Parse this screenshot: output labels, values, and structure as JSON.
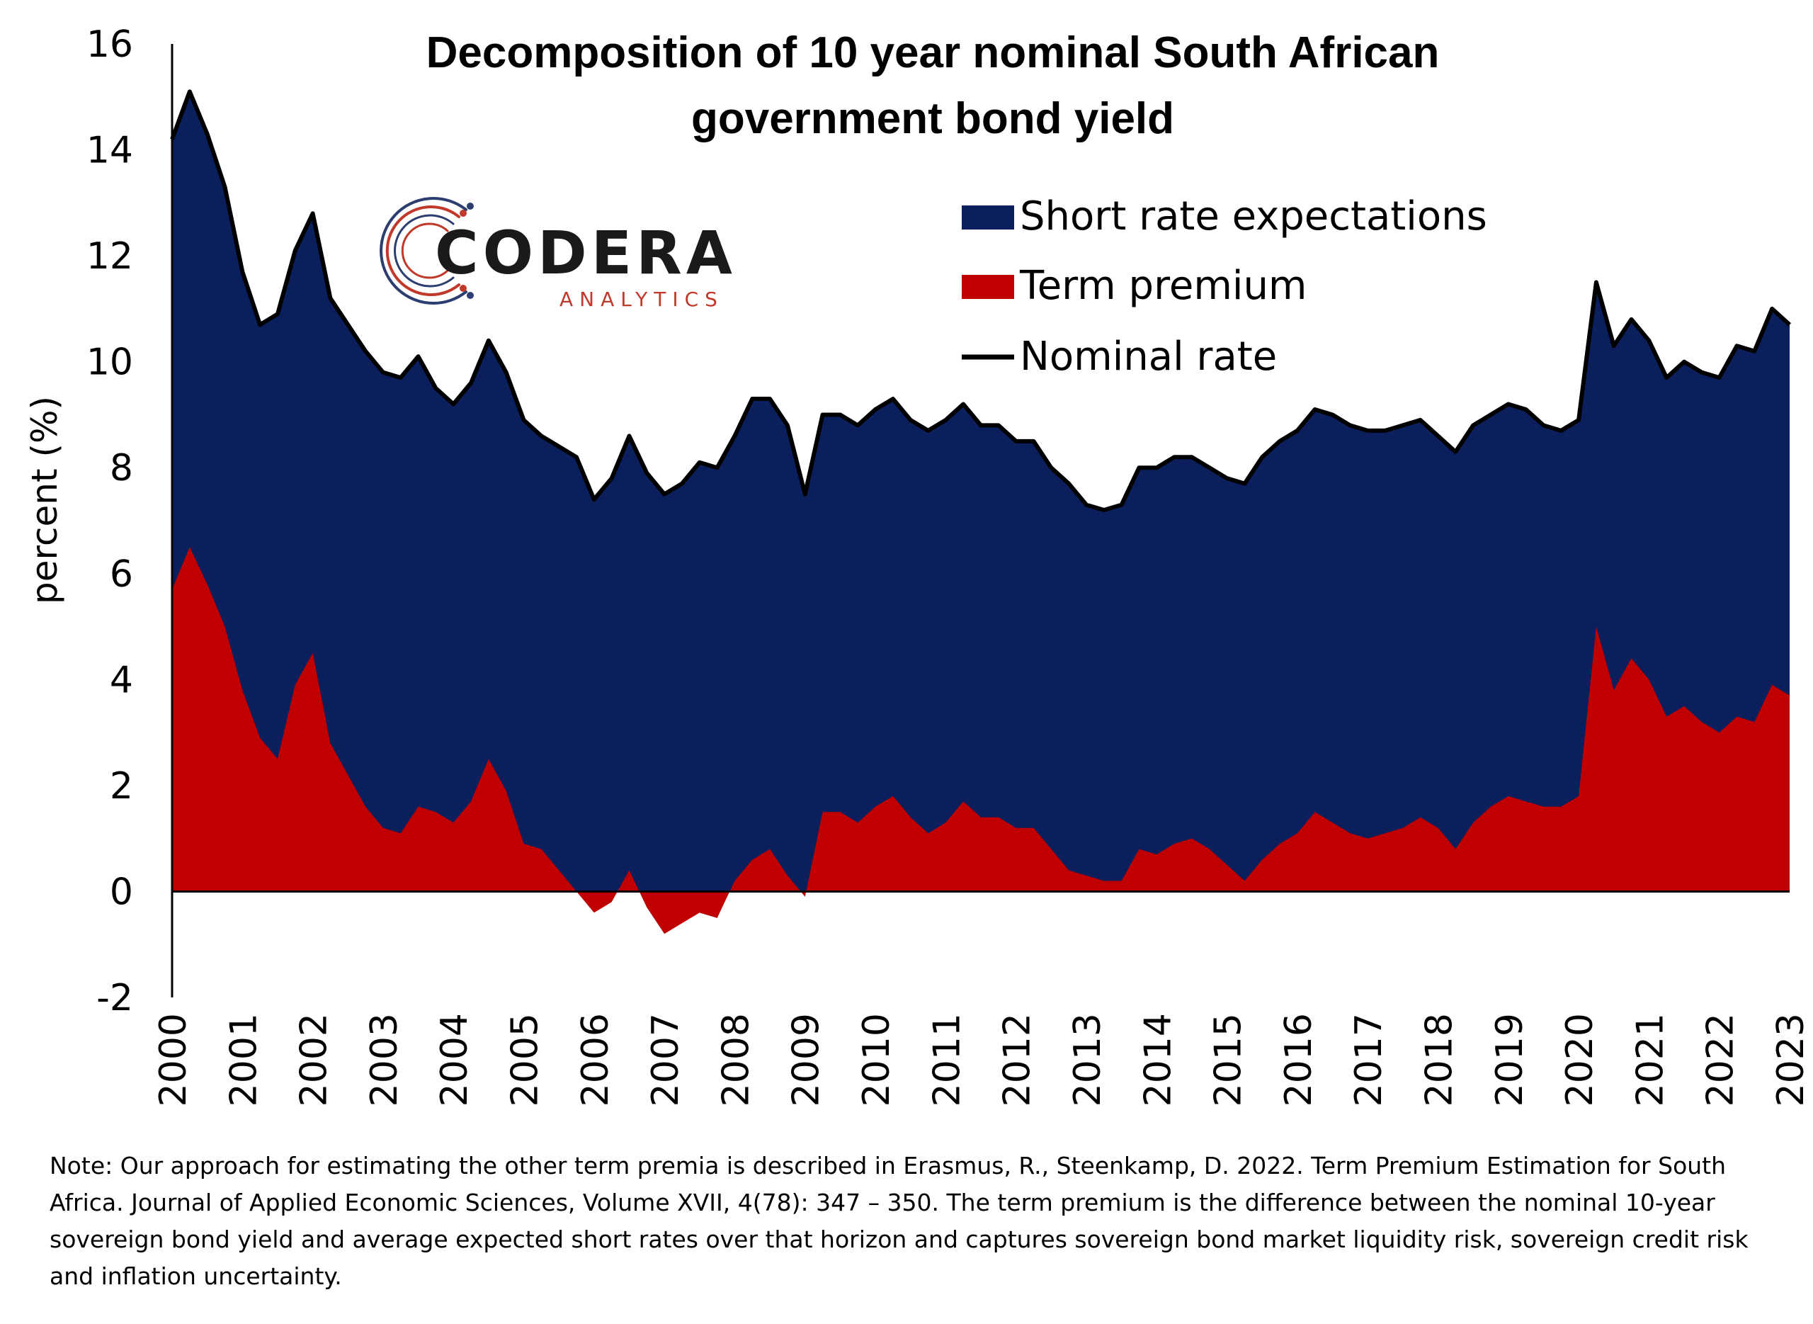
{
  "chart_data": {
    "type": "area",
    "title": "Decomposition of 10 year nominal South African government bond yield",
    "title_lines": [
      "Decomposition of 10 year nominal South African",
      "government bond yield"
    ],
    "ylabel": "percent (%)",
    "xlabel": "",
    "ylim": [
      -2,
      16
    ],
    "yticks": [
      -2,
      0,
      2,
      4,
      6,
      8,
      10,
      12,
      14,
      16
    ],
    "xlim": [
      2000,
      2023
    ],
    "xticks": [
      2000,
      2001,
      2002,
      2003,
      2004,
      2005,
      2006,
      2007,
      2008,
      2009,
      2010,
      2011,
      2012,
      2013,
      2014,
      2015,
      2016,
      2017,
      2018,
      2019,
      2020,
      2021,
      2022,
      2023
    ],
    "legend_position": "top-right",
    "grid": false,
    "x": [
      2000.0,
      2000.25,
      2000.5,
      2000.75,
      2001.0,
      2001.25,
      2001.5,
      2001.75,
      2002.0,
      2002.25,
      2002.5,
      2002.75,
      2003.0,
      2003.25,
      2003.5,
      2003.75,
      2004.0,
      2004.25,
      2004.5,
      2004.75,
      2005.0,
      2005.25,
      2005.5,
      2005.75,
      2006.0,
      2006.25,
      2006.5,
      2006.75,
      2007.0,
      2007.25,
      2007.5,
      2007.75,
      2008.0,
      2008.25,
      2008.5,
      2008.75,
      2009.0,
      2009.25,
      2009.5,
      2009.75,
      2010.0,
      2010.25,
      2010.5,
      2010.75,
      2011.0,
      2011.25,
      2011.5,
      2011.75,
      2012.0,
      2012.25,
      2012.5,
      2012.75,
      2013.0,
      2013.25,
      2013.5,
      2013.75,
      2014.0,
      2014.25,
      2014.5,
      2014.75,
      2015.0,
      2015.25,
      2015.5,
      2015.75,
      2016.0,
      2016.25,
      2016.5,
      2016.75,
      2017.0,
      2017.25,
      2017.5,
      2017.75,
      2018.0,
      2018.25,
      2018.5,
      2018.75,
      2019.0,
      2019.25,
      2019.5,
      2019.75,
      2020.0,
      2020.25,
      2020.5,
      2020.75,
      2021.0,
      2021.25,
      2021.5,
      2021.75,
      2022.0,
      2022.25,
      2022.5,
      2022.75,
      2023.0
    ],
    "series": [
      {
        "name": "Short rate expectations",
        "color": "#0b1f5c",
        "kind": "area",
        "values": [
          8.5,
          8.6,
          8.5,
          8.3,
          7.9,
          7.8,
          8.4,
          8.2,
          8.3,
          8.4,
          8.5,
          8.6,
          8.6,
          8.6,
          8.5,
          8.0,
          7.9,
          7.9,
          7.7,
          7.9,
          8.0,
          8.0,
          8.0,
          7.8,
          7.8,
          8.0,
          8.2,
          8.2,
          8.3,
          8.3,
          8.5,
          8.5,
          8.4,
          8.7,
          8.5,
          8.5,
          7.6,
          7.5,
          7.5,
          7.5,
          7.5,
          7.5,
          7.5,
          7.6,
          7.6,
          7.5,
          7.4,
          7.4,
          7.3,
          7.3,
          7.2,
          7.3,
          7.0,
          7.0,
          7.1,
          7.2,
          7.3,
          7.3,
          7.2,
          7.2,
          7.3,
          7.5,
          7.6,
          7.6,
          7.6,
          7.6,
          7.7,
          7.7,
          7.7,
          7.6,
          7.6,
          7.5,
          7.4,
          7.5,
          7.5,
          7.4,
          7.4,
          7.4,
          7.2,
          7.1,
          7.1,
          6.5,
          6.5,
          6.4,
          6.4,
          6.4,
          6.5,
          6.6,
          6.7,
          7.0,
          7.0,
          7.1,
          7.0
        ]
      },
      {
        "name": "Term premium",
        "color": "#c00000",
        "kind": "area",
        "values": [
          5.7,
          6.5,
          5.8,
          5.0,
          3.8,
          2.9,
          2.5,
          3.9,
          4.5,
          2.8,
          2.2,
          1.6,
          1.2,
          1.1,
          1.6,
          1.5,
          1.3,
          1.7,
          2.5,
          1.9,
          0.9,
          0.8,
          0.4,
          0.0,
          -0.4,
          -0.2,
          0.4,
          -0.3,
          -0.8,
          -0.6,
          -0.4,
          -0.5,
          0.2,
          0.6,
          0.8,
          0.3,
          -0.1,
          1.5,
          1.5,
          1.3,
          1.6,
          1.8,
          1.4,
          1.1,
          1.3,
          1.7,
          1.4,
          1.4,
          1.2,
          1.2,
          0.8,
          0.4,
          0.3,
          0.2,
          0.2,
          0.8,
          0.7,
          0.9,
          1.0,
          0.8,
          0.5,
          0.2,
          0.6,
          0.9,
          1.1,
          1.5,
          1.3,
          1.1,
          1.0,
          1.1,
          1.2,
          1.4,
          1.2,
          0.8,
          1.3,
          1.6,
          1.8,
          1.7,
          1.6,
          1.6,
          1.8,
          5.0,
          3.8,
          4.4,
          4.0,
          3.3,
          3.5,
          3.2,
          3.0,
          3.3,
          3.2,
          3.9,
          3.7
        ]
      },
      {
        "name": "Nominal rate",
        "color": "#000000",
        "kind": "line",
        "values": [
          14.2,
          15.1,
          14.3,
          13.3,
          11.7,
          10.7,
          10.9,
          12.1,
          12.8,
          11.2,
          10.7,
          10.2,
          9.8,
          9.7,
          10.1,
          9.5,
          9.2,
          9.6,
          10.4,
          9.8,
          8.9,
          8.6,
          8.4,
          8.2,
          7.4,
          7.8,
          8.6,
          7.9,
          7.5,
          7.7,
          8.1,
          8.0,
          8.6,
          9.3,
          9.3,
          8.8,
          7.5,
          9.0,
          9.0,
          8.8,
          9.1,
          9.3,
          8.9,
          8.7,
          8.9,
          9.2,
          8.8,
          8.8,
          8.5,
          8.5,
          8.0,
          7.7,
          7.3,
          7.2,
          7.3,
          8.0,
          8.0,
          8.2,
          8.2,
          8.0,
          7.8,
          7.7,
          8.2,
          8.5,
          8.7,
          9.1,
          9.0,
          8.8,
          8.7,
          8.7,
          8.8,
          8.9,
          8.6,
          8.3,
          8.8,
          9.0,
          9.2,
          9.1,
          8.8,
          8.7,
          8.9,
          11.5,
          10.3,
          10.8,
          10.4,
          9.7,
          10.0,
          9.8,
          9.7,
          10.3,
          10.2,
          11.0,
          10.7
        ]
      }
    ]
  },
  "logo": {
    "name": "CODERA",
    "sub": "ANALYTICS"
  },
  "note": "Note: Our approach for estimating the other term premia is described in Erasmus, R., Steenkamp, D. 2022. Term Premium Estimation for South Africa. Journal of Applied Economic Sciences, Volume XVII, 4(78): 347 – 350. The term premium is the difference between the nominal 10-year sovereign bond yield and average expected short rates over that horizon and captures sovereign bond market liquidity risk, sovereign credit risk and inflation uncertainty."
}
